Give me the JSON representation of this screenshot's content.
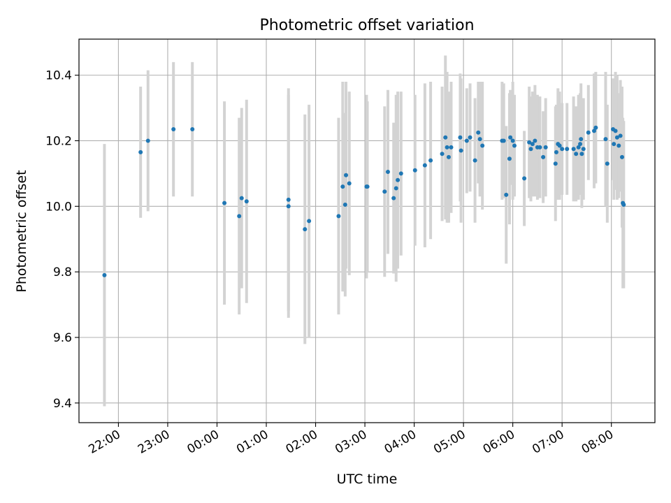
{
  "chart_data": {
    "type": "scatter",
    "title": "Photometric offset variation",
    "xlabel": "UTC time",
    "ylabel": "Photometric offset",
    "x_type": "time",
    "xlim": [
      "21:12",
      "08:53"
    ],
    "ylim": [
      9.34,
      10.51
    ],
    "xticks": [
      "22:00",
      "23:00",
      "00:00",
      "01:00",
      "02:00",
      "03:00",
      "04:00",
      "05:00",
      "06:00",
      "07:00",
      "08:00"
    ],
    "yticks": [
      "9.4",
      "9.6",
      "9.8",
      "10.0",
      "10.2",
      "10.4"
    ],
    "grid": true,
    "colors": {
      "marker": "#1f77b4",
      "errorbar": "#d3d3d3",
      "grid": "#b0b0b0"
    },
    "points": [
      {
        "t": "21:43",
        "y": 9.79,
        "err": 0.4
      },
      {
        "t": "22:27",
        "y": 10.165,
        "err": 0.2
      },
      {
        "t": "22:36",
        "y": 10.2,
        "err": 0.215
      },
      {
        "t": "23:07",
        "y": 10.235,
        "err": 0.205
      },
      {
        "t": "23:30",
        "y": 10.235,
        "err": 0.205
      },
      {
        "t": "00:09",
        "y": 10.01,
        "err": 0.31
      },
      {
        "t": "00:27",
        "y": 9.97,
        "err": 0.3
      },
      {
        "t": "00:30",
        "y": 10.025,
        "err": 0.275
      },
      {
        "t": "00:36",
        "y": 10.015,
        "err": 0.31
      },
      {
        "t": "01:27",
        "y": 10.0,
        "err": 0.34
      },
      {
        "t": "01:27",
        "y": 10.02,
        "err": 0.34
      },
      {
        "t": "01:47",
        "y": 9.93,
        "err": 0.35
      },
      {
        "t": "01:52",
        "y": 9.955,
        "err": 0.355
      },
      {
        "t": "02:28",
        "y": 9.97,
        "err": 0.3
      },
      {
        "t": "02:33",
        "y": 10.06,
        "err": 0.32
      },
      {
        "t": "02:36",
        "y": 10.005,
        "err": 0.28
      },
      {
        "t": "02:37",
        "y": 10.095,
        "err": 0.285
      },
      {
        "t": "02:41",
        "y": 10.07,
        "err": 0.28
      },
      {
        "t": "03:02",
        "y": 10.06,
        "err": 0.28
      },
      {
        "t": "03:03",
        "y": 10.06,
        "err": 0.26
      },
      {
        "t": "03:24",
        "y": 10.045,
        "err": 0.26
      },
      {
        "t": "03:28",
        "y": 10.105,
        "err": 0.25
      },
      {
        "t": "03:35",
        "y": 10.025,
        "err": 0.23
      },
      {
        "t": "03:38",
        "y": 10.055,
        "err": 0.285
      },
      {
        "t": "03:40",
        "y": 10.08,
        "err": 0.27
      },
      {
        "t": "03:44",
        "y": 10.1,
        "err": 0.25
      },
      {
        "t": "04:01",
        "y": 10.11,
        "err": 0.23
      },
      {
        "t": "04:13",
        "y": 10.125,
        "err": 0.25
      },
      {
        "t": "04:20",
        "y": 10.14,
        "err": 0.24
      },
      {
        "t": "04:34",
        "y": 10.16,
        "err": 0.205
      },
      {
        "t": "04:38",
        "y": 10.21,
        "err": 0.25
      },
      {
        "t": "04:40",
        "y": 10.18,
        "err": 0.23
      },
      {
        "t": "04:42",
        "y": 10.15,
        "err": 0.2
      },
      {
        "t": "04:45",
        "y": 10.18,
        "err": 0.2
      },
      {
        "t": "04:56",
        "y": 10.21,
        "err": 0.195
      },
      {
        "t": "04:57",
        "y": 10.17,
        "err": 0.22
      },
      {
        "t": "05:04",
        "y": 10.2,
        "err": 0.16
      },
      {
        "t": "05:08",
        "y": 10.21,
        "err": 0.165
      },
      {
        "t": "05:14",
        "y": 10.14,
        "err": 0.19
      },
      {
        "t": "05:18",
        "y": 10.225,
        "err": 0.155
      },
      {
        "t": "05:20",
        "y": 10.205,
        "err": 0.175
      },
      {
        "t": "05:23",
        "y": 10.185,
        "err": 0.195
      },
      {
        "t": "05:47",
        "y": 10.2,
        "err": 0.18
      },
      {
        "t": "05:49",
        "y": 10.2,
        "err": 0.175
      },
      {
        "t": "05:52",
        "y": 10.035,
        "err": 0.21
      },
      {
        "t": "05:56",
        "y": 10.145,
        "err": 0.2
      },
      {
        "t": "05:57",
        "y": 10.21,
        "err": 0.145
      },
      {
        "t": "06:00",
        "y": 10.2,
        "err": 0.18
      },
      {
        "t": "06:02",
        "y": 10.185,
        "err": 0.155
      },
      {
        "t": "06:14",
        "y": 10.085,
        "err": 0.145
      },
      {
        "t": "06:20",
        "y": 10.195,
        "err": 0.17
      },
      {
        "t": "06:22",
        "y": 10.175,
        "err": 0.16
      },
      {
        "t": "06:24",
        "y": 10.19,
        "err": 0.16
      },
      {
        "t": "06:27",
        "y": 10.2,
        "err": 0.17
      },
      {
        "t": "06:30",
        "y": 10.18,
        "err": 0.16
      },
      {
        "t": "06:33",
        "y": 10.18,
        "err": 0.155
      },
      {
        "t": "06:37",
        "y": 10.15,
        "err": 0.14
      },
      {
        "t": "06:40",
        "y": 10.18,
        "err": 0.15
      },
      {
        "t": "06:52",
        "y": 10.13,
        "err": 0.175
      },
      {
        "t": "06:53",
        "y": 10.165,
        "err": 0.145
      },
      {
        "t": "06:55",
        "y": 10.19,
        "err": 0.17
      },
      {
        "t": "06:57",
        "y": 10.185,
        "err": 0.165
      },
      {
        "t": "07:00",
        "y": 10.175,
        "err": 0.14
      },
      {
        "t": "07:06",
        "y": 10.175,
        "err": 0.14
      },
      {
        "t": "07:14",
        "y": 10.175,
        "err": 0.16
      },
      {
        "t": "07:17",
        "y": 10.16,
        "err": 0.145
      },
      {
        "t": "07:20",
        "y": 10.18,
        "err": 0.16
      },
      {
        "t": "07:22",
        "y": 10.19,
        "err": 0.155
      },
      {
        "t": "07:23",
        "y": 10.205,
        "err": 0.17
      },
      {
        "t": "07:24",
        "y": 10.16,
        "err": 0.165
      },
      {
        "t": "07:26",
        "y": 10.175,
        "err": 0.155
      },
      {
        "t": "07:32",
        "y": 10.225,
        "err": 0.145
      },
      {
        "t": "07:39",
        "y": 10.23,
        "err": 0.175
      },
      {
        "t": "07:41",
        "y": 10.24,
        "err": 0.17
      },
      {
        "t": "07:53",
        "y": 10.205,
        "err": 0.205
      },
      {
        "t": "07:55",
        "y": 10.13,
        "err": 0.18
      },
      {
        "t": "08:02",
        "y": 10.235,
        "err": 0.155
      },
      {
        "t": "08:03",
        "y": 10.19,
        "err": 0.17
      },
      {
        "t": "08:05",
        "y": 10.23,
        "err": 0.18
      },
      {
        "t": "08:07",
        "y": 10.21,
        "err": 0.19
      },
      {
        "t": "08:09",
        "y": 10.185,
        "err": 0.16
      },
      {
        "t": "08:11",
        "y": 10.215,
        "err": 0.17
      },
      {
        "t": "08:13",
        "y": 10.15,
        "err": 0.215
      },
      {
        "t": "08:14",
        "y": 10.01,
        "err": 0.26
      },
      {
        "t": "08:15",
        "y": 10.005,
        "err": 0.255
      }
    ]
  }
}
